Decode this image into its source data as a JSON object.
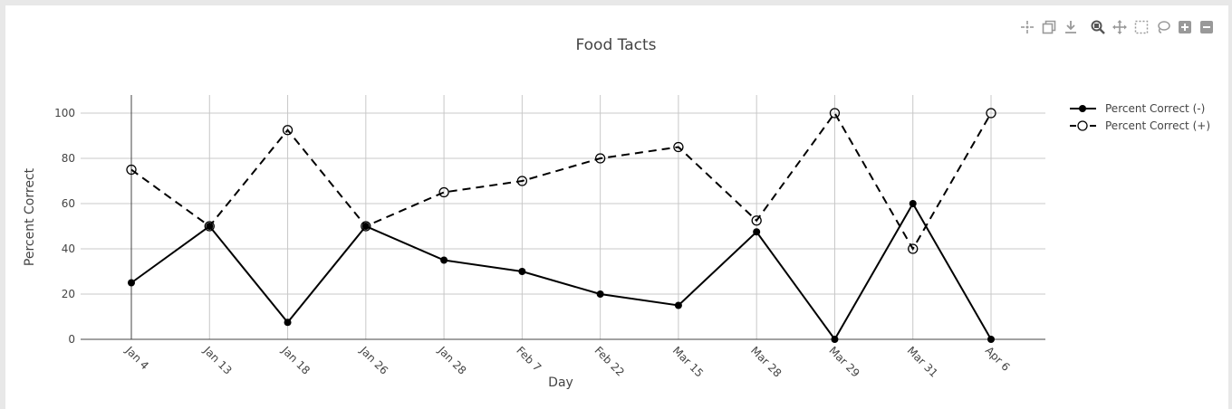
{
  "modebar": {
    "buttons": [
      {
        "name": "toggle-spike-lines-icon"
      },
      {
        "name": "copy-icon"
      },
      {
        "name": "download-icon"
      },
      {
        "name": "zoom-icon"
      },
      {
        "name": "pan-icon"
      },
      {
        "name": "box-select-icon"
      },
      {
        "name": "lasso-select-icon"
      },
      {
        "name": "zoom-in-icon"
      },
      {
        "name": "zoom-out-icon"
      }
    ]
  },
  "chart_data": {
    "type": "line",
    "title": "Food Tacts",
    "xlabel": "Day",
    "ylabel": "Percent Correct",
    "categories": [
      "Jan 4",
      "Jan 13",
      "Jan 18",
      "Jan 26",
      "Jan 28",
      "Feb 7",
      "Feb 22",
      "Mar 15",
      "Mar 28",
      "Mar 29",
      "Mar 31",
      "Apr 6"
    ],
    "ylim": [
      0,
      108
    ],
    "yticks": [
      0,
      20,
      40,
      60,
      80,
      100
    ],
    "grid": true,
    "legend_position": "top-right",
    "series": [
      {
        "name": "Percent Correct (-)",
        "values": [
          25,
          50,
          7.5,
          50,
          35,
          30,
          20,
          15,
          47.5,
          0,
          60,
          0
        ],
        "dash": "solid",
        "marker": "filled-circle",
        "color": "#000000"
      },
      {
        "name": "Percent Correct (+)",
        "values": [
          75,
          50,
          92.5,
          50,
          65,
          70,
          80,
          85,
          52.5,
          100,
          40,
          100
        ],
        "dash": "dashed",
        "marker": "open-circle",
        "color": "#000000"
      }
    ]
  }
}
